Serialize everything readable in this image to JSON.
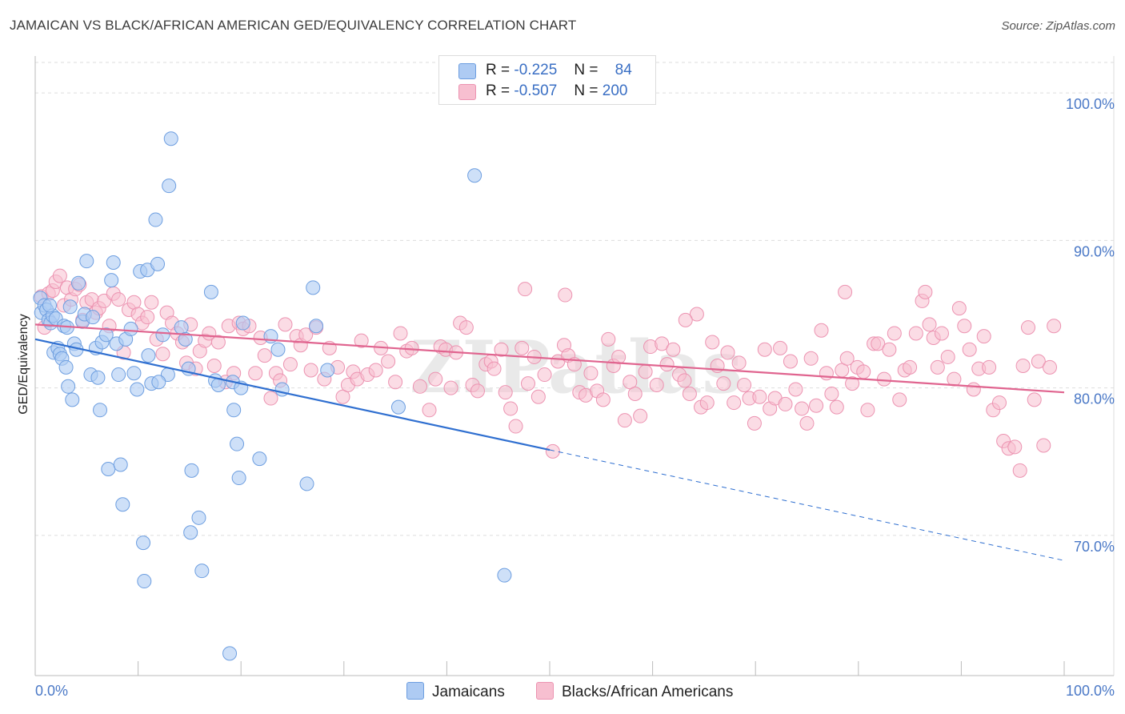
{
  "title": "JAMAICAN VS BLACK/AFRICAN AMERICAN GED/EQUIVALENCY CORRELATION CHART",
  "source": "Source: ZipAtlas.com",
  "watermark": "ZIPatlas",
  "colors": {
    "blue_fill": "#aecbf3",
    "blue_stroke": "#6d9ee0",
    "blue_line": "#2f6fd0",
    "pink_fill": "#f7bfd0",
    "pink_stroke": "#ec93b1",
    "pink_line": "#e0648f",
    "grid": "#dddddd",
    "tick_text": "#4a78c6"
  },
  "legend": {
    "rows": [
      {
        "r_label": "R =",
        "r_value": "-0.225",
        "n_label": "N =",
        "n_value": "84"
      },
      {
        "r_label": "R =",
        "r_value": "-0.507",
        "n_label": "N =",
        "n_value": "200"
      }
    ]
  },
  "bottom_legend": [
    "Jamaicans",
    "Blacks/African Americans"
  ],
  "chart_data": {
    "type": "scatter",
    "ylabel": "GED/Equivalency",
    "xlim": [
      0,
      100
    ],
    "ylim": [
      60.5,
      102.5
    ],
    "x_tick_labels": [
      {
        "value": 0,
        "label": "0.0%"
      },
      {
        "value": 100,
        "label": "100.0%"
      }
    ],
    "y_ticks": [
      {
        "value": 100,
        "label": "100.0%"
      },
      {
        "value": 90,
        "label": "90.0%"
      },
      {
        "value": 80,
        "label": "80.0%"
      },
      {
        "value": 70,
        "label": "70.0%"
      }
    ],
    "series": [
      {
        "name": "Jamaicans",
        "color": "#aecbf3",
        "trend": {
          "x0": 0,
          "y0": 83.3,
          "x1": 50,
          "y1": 75.8,
          "dashed_to_x": 100,
          "dashed_to_y": 68.3
        },
        "points": [
          [
            0.5,
            86.1
          ],
          [
            0.6,
            85.1
          ],
          [
            0.9,
            85.6
          ],
          [
            1.1,
            85.3
          ],
          [
            1.3,
            84.6
          ],
          [
            1.5,
            84.4
          ],
          [
            1.7,
            84.9
          ],
          [
            1.8,
            82.4
          ],
          [
            2.0,
            84.7
          ],
          [
            2.2,
            82.7
          ],
          [
            2.4,
            82.3
          ],
          [
            2.6,
            82.0
          ],
          [
            2.8,
            84.2
          ],
          [
            3.0,
            81.4
          ],
          [
            3.2,
            80.1
          ],
          [
            3.4,
            85.5
          ],
          [
            3.6,
            79.2
          ],
          [
            3.8,
            83.0
          ],
          [
            4.0,
            82.6
          ],
          [
            4.2,
            87.1
          ],
          [
            4.6,
            84.5
          ],
          [
            4.8,
            85.0
          ],
          [
            5.0,
            88.6
          ],
          [
            5.4,
            80.9
          ],
          [
            5.6,
            84.8
          ],
          [
            5.9,
            82.7
          ],
          [
            6.3,
            78.5
          ],
          [
            6.5,
            83.1
          ],
          [
            6.9,
            83.6
          ],
          [
            7.1,
            74.5
          ],
          [
            7.4,
            87.3
          ],
          [
            7.6,
            88.5
          ],
          [
            7.9,
            83.0
          ],
          [
            8.1,
            80.9
          ],
          [
            8.3,
            74.8
          ],
          [
            8.5,
            72.1
          ],
          [
            8.8,
            83.3
          ],
          [
            9.3,
            84.0
          ],
          [
            9.6,
            81.0
          ],
          [
            9.9,
            79.9
          ],
          [
            10.2,
            87.9
          ],
          [
            10.5,
            69.5
          ],
          [
            10.6,
            66.9
          ],
          [
            10.9,
            88.0
          ],
          [
            11.0,
            82.2
          ],
          [
            11.3,
            80.3
          ],
          [
            11.7,
            91.4
          ],
          [
            11.9,
            88.4
          ],
          [
            12.4,
            83.6
          ],
          [
            12.9,
            80.9
          ],
          [
            13.0,
            93.7
          ],
          [
            13.2,
            96.9
          ],
          [
            14.2,
            84.1
          ],
          [
            14.6,
            83.3
          ],
          [
            14.9,
            81.3
          ],
          [
            15.2,
            74.4
          ],
          [
            15.1,
            70.2
          ],
          [
            15.9,
            71.2
          ],
          [
            16.2,
            67.6
          ],
          [
            17.1,
            86.5
          ],
          [
            17.5,
            80.5
          ],
          [
            17.8,
            80.2
          ],
          [
            19.2,
            80.4
          ],
          [
            19.3,
            78.5
          ],
          [
            19.6,
            76.2
          ],
          [
            19.8,
            73.9
          ],
          [
            20.0,
            80.0
          ],
          [
            20.2,
            84.4
          ],
          [
            18.9,
            62.0
          ],
          [
            21.8,
            75.2
          ],
          [
            22.9,
            83.5
          ],
          [
            23.6,
            82.6
          ],
          [
            24.0,
            79.9
          ],
          [
            26.4,
            73.5
          ],
          [
            27.0,
            86.8
          ],
          [
            27.3,
            84.2
          ],
          [
            28.4,
            81.2
          ],
          [
            35.3,
            78.7
          ],
          [
            42.7,
            94.4
          ],
          [
            45.6,
            67.3
          ],
          [
            1.4,
            85.6
          ],
          [
            3.1,
            84.1
          ],
          [
            6.1,
            80.7
          ],
          [
            12.0,
            80.4
          ]
        ]
      },
      {
        "name": "Blacks/African Americans",
        "color": "#f7bfd0",
        "trend": {
          "x0": 0,
          "y0": 84.3,
          "x1": 100,
          "y1": 79.7
        },
        "points": [
          [
            0.6,
            86.2
          ],
          [
            0.9,
            84.1
          ],
          [
            1.3,
            86.4
          ],
          [
            1.7,
            86.6
          ],
          [
            2.0,
            87.2
          ],
          [
            2.4,
            87.6
          ],
          [
            2.8,
            85.6
          ],
          [
            3.1,
            86.8
          ],
          [
            3.5,
            86.0
          ],
          [
            3.9,
            86.7
          ],
          [
            4.3,
            87.0
          ],
          [
            4.6,
            84.6
          ],
          [
            5.0,
            85.8
          ],
          [
            5.5,
            86.0
          ],
          [
            5.9,
            85.1
          ],
          [
            6.2,
            85.4
          ],
          [
            6.7,
            85.9
          ],
          [
            7.2,
            84.2
          ],
          [
            7.6,
            86.4
          ],
          [
            8.1,
            86.0
          ],
          [
            8.6,
            82.4
          ],
          [
            9.1,
            85.3
          ],
          [
            9.6,
            85.8
          ],
          [
            10.0,
            85.0
          ],
          [
            10.4,
            84.4
          ],
          [
            10.9,
            84.8
          ],
          [
            11.3,
            85.8
          ],
          [
            11.8,
            83.3
          ],
          [
            12.4,
            82.3
          ],
          [
            12.8,
            85.1
          ],
          [
            13.3,
            84.4
          ],
          [
            13.8,
            83.7
          ],
          [
            14.3,
            83.1
          ],
          [
            14.7,
            81.7
          ],
          [
            15.1,
            84.3
          ],
          [
            15.6,
            81.3
          ],
          [
            16.0,
            82.5
          ],
          [
            16.5,
            83.2
          ],
          [
            16.9,
            83.7
          ],
          [
            17.4,
            81.5
          ],
          [
            17.8,
            83.1
          ],
          [
            18.5,
            80.4
          ],
          [
            18.8,
            84.2
          ],
          [
            19.3,
            81.0
          ],
          [
            19.8,
            84.4
          ],
          [
            20.2,
            84.0
          ],
          [
            20.8,
            84.2
          ],
          [
            21.4,
            81.0
          ],
          [
            21.9,
            83.4
          ],
          [
            22.3,
            82.2
          ],
          [
            22.9,
            79.3
          ],
          [
            23.4,
            81.0
          ],
          [
            23.8,
            80.5
          ],
          [
            24.3,
            84.3
          ],
          [
            24.8,
            81.6
          ],
          [
            25.4,
            83.5
          ],
          [
            25.8,
            82.9
          ],
          [
            26.3,
            83.6
          ],
          [
            26.8,
            81.2
          ],
          [
            27.3,
            84.1
          ],
          [
            28.1,
            80.6
          ],
          [
            28.6,
            82.7
          ],
          [
            29.4,
            81.4
          ],
          [
            29.9,
            79.4
          ],
          [
            30.4,
            80.2
          ],
          [
            30.9,
            81.1
          ],
          [
            31.3,
            80.6
          ],
          [
            31.7,
            83.2
          ],
          [
            32.3,
            80.9
          ],
          [
            33.1,
            81.2
          ],
          [
            33.6,
            82.7
          ],
          [
            34.3,
            81.8
          ],
          [
            35.0,
            80.4
          ],
          [
            35.5,
            83.7
          ],
          [
            36.1,
            82.5
          ],
          [
            36.6,
            82.7
          ],
          [
            37.4,
            80.1
          ],
          [
            38.3,
            78.5
          ],
          [
            38.9,
            80.6
          ],
          [
            39.4,
            82.8
          ],
          [
            39.9,
            82.6
          ],
          [
            40.4,
            80.0
          ],
          [
            40.9,
            82.4
          ],
          [
            41.3,
            84.4
          ],
          [
            41.9,
            84.1
          ],
          [
            42.5,
            80.2
          ],
          [
            43.0,
            79.8
          ],
          [
            43.8,
            81.6
          ],
          [
            44.3,
            81.8
          ],
          [
            44.6,
            81.3
          ],
          [
            45.3,
            82.6
          ],
          [
            45.7,
            79.7
          ],
          [
            46.2,
            78.6
          ],
          [
            46.7,
            77.4
          ],
          [
            47.3,
            82.7
          ],
          [
            47.9,
            80.3
          ],
          [
            48.5,
            82.1
          ],
          [
            48.9,
            79.4
          ],
          [
            49.5,
            80.9
          ],
          [
            50.3,
            75.7
          ],
          [
            50.8,
            81.8
          ],
          [
            51.4,
            82.9
          ],
          [
            51.8,
            82.2
          ],
          [
            52.4,
            81.6
          ],
          [
            52.9,
            79.7
          ],
          [
            53.5,
            79.5
          ],
          [
            54.0,
            81.0
          ],
          [
            54.6,
            79.8
          ],
          [
            55.2,
            79.2
          ],
          [
            55.7,
            83.3
          ],
          [
            56.2,
            81.5
          ],
          [
            56.7,
            82.1
          ],
          [
            57.3,
            77.8
          ],
          [
            57.8,
            80.4
          ],
          [
            58.3,
            79.6
          ],
          [
            58.8,
            78.1
          ],
          [
            59.3,
            81.1
          ],
          [
            59.8,
            82.8
          ],
          [
            60.4,
            80.2
          ],
          [
            60.9,
            83.0
          ],
          [
            61.4,
            81.6
          ],
          [
            62.0,
            82.6
          ],
          [
            62.6,
            80.9
          ],
          [
            63.1,
            80.5
          ],
          [
            63.6,
            79.6
          ],
          [
            64.3,
            85.0
          ],
          [
            64.7,
            78.7
          ],
          [
            65.3,
            79.0
          ],
          [
            65.8,
            83.1
          ],
          [
            66.3,
            81.5
          ],
          [
            66.9,
            80.3
          ],
          [
            67.3,
            82.4
          ],
          [
            67.9,
            79.0
          ],
          [
            68.4,
            81.7
          ],
          [
            68.9,
            80.2
          ],
          [
            69.4,
            79.3
          ],
          [
            69.9,
            77.6
          ],
          [
            70.4,
            79.4
          ],
          [
            70.9,
            82.6
          ],
          [
            71.4,
            78.6
          ],
          [
            71.9,
            79.3
          ],
          [
            72.4,
            82.7
          ],
          [
            72.9,
            78.9
          ],
          [
            73.4,
            81.8
          ],
          [
            73.9,
            79.9
          ],
          [
            74.5,
            78.6
          ],
          [
            75.0,
            77.6
          ],
          [
            75.4,
            82.0
          ],
          [
            75.9,
            78.8
          ],
          [
            76.4,
            83.9
          ],
          [
            76.9,
            81.0
          ],
          [
            77.4,
            79.6
          ],
          [
            77.9,
            78.7
          ],
          [
            78.4,
            81.2
          ],
          [
            78.9,
            82.0
          ],
          [
            79.4,
            80.3
          ],
          [
            79.9,
            81.4
          ],
          [
            80.5,
            81.1
          ],
          [
            80.9,
            78.5
          ],
          [
            81.5,
            83.0
          ],
          [
            81.9,
            83.0
          ],
          [
            82.5,
            80.6
          ],
          [
            83.0,
            82.6
          ],
          [
            83.5,
            83.7
          ],
          [
            84.0,
            79.2
          ],
          [
            84.5,
            81.2
          ],
          [
            85.0,
            81.4
          ],
          [
            85.6,
            83.7
          ],
          [
            86.2,
            85.9
          ],
          [
            86.5,
            86.5
          ],
          [
            86.9,
            84.3
          ],
          [
            87.3,
            83.4
          ],
          [
            87.7,
            81.4
          ],
          [
            88.1,
            83.7
          ],
          [
            88.7,
            82.1
          ],
          [
            89.3,
            80.6
          ],
          [
            89.8,
            85.4
          ],
          [
            90.3,
            84.2
          ],
          [
            90.8,
            82.6
          ],
          [
            91.2,
            79.9
          ],
          [
            91.7,
            81.3
          ],
          [
            92.2,
            83.5
          ],
          [
            92.7,
            81.4
          ],
          [
            93.1,
            78.5
          ],
          [
            93.7,
            79.0
          ],
          [
            94.1,
            76.4
          ],
          [
            94.6,
            75.9
          ],
          [
            95.2,
            76.0
          ],
          [
            95.7,
            74.4
          ],
          [
            96.0,
            81.5
          ],
          [
            96.5,
            84.1
          ],
          [
            97.1,
            79.2
          ],
          [
            97.5,
            81.8
          ],
          [
            98.0,
            76.1
          ],
          [
            98.6,
            81.4
          ],
          [
            99.0,
            84.2
          ],
          [
            63.2,
            84.6
          ],
          [
            47.6,
            86.7
          ],
          [
            51.5,
            86.3
          ],
          [
            78.7,
            86.5
          ]
        ]
      }
    ],
    "grid": true,
    "legend_placement": "top-center"
  }
}
